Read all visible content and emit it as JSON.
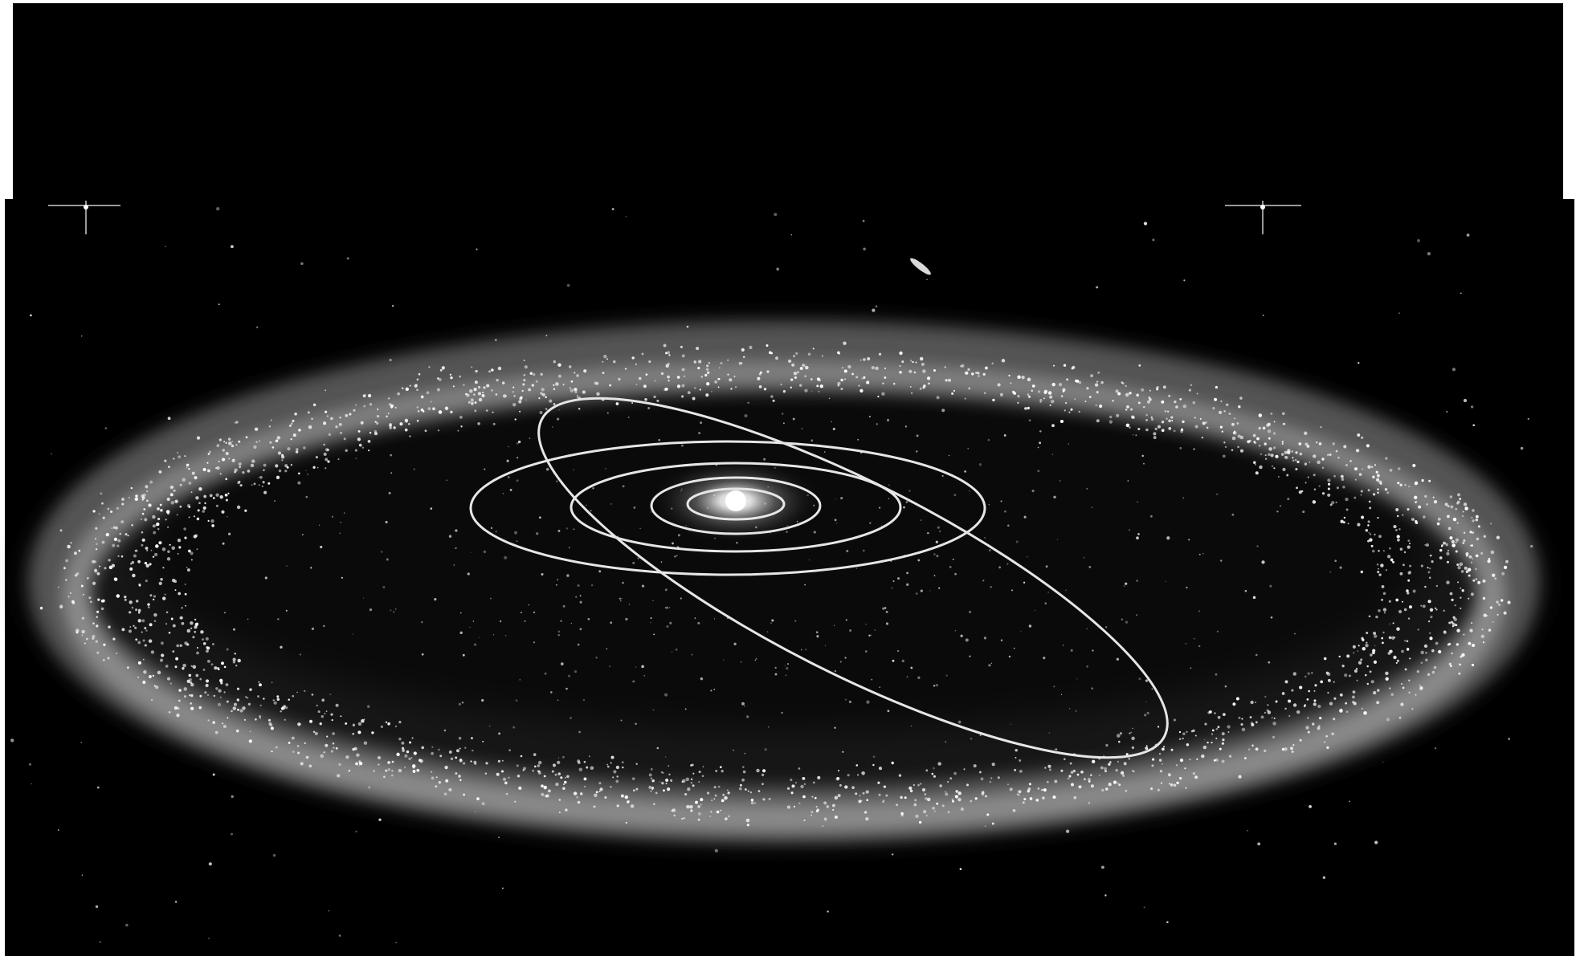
{
  "image": {
    "subject": "solar-system-orbits-inside-debris-belt",
    "colors": {
      "background": "#ffffff",
      "space": "#000000",
      "orbit_line": "#e6e6e6",
      "belt": "#ffffff",
      "sun_glow": "#ffffff"
    },
    "icons": [
      "sun-icon",
      "orbit-icon",
      "star-icon",
      "galaxy-icon"
    ]
  }
}
